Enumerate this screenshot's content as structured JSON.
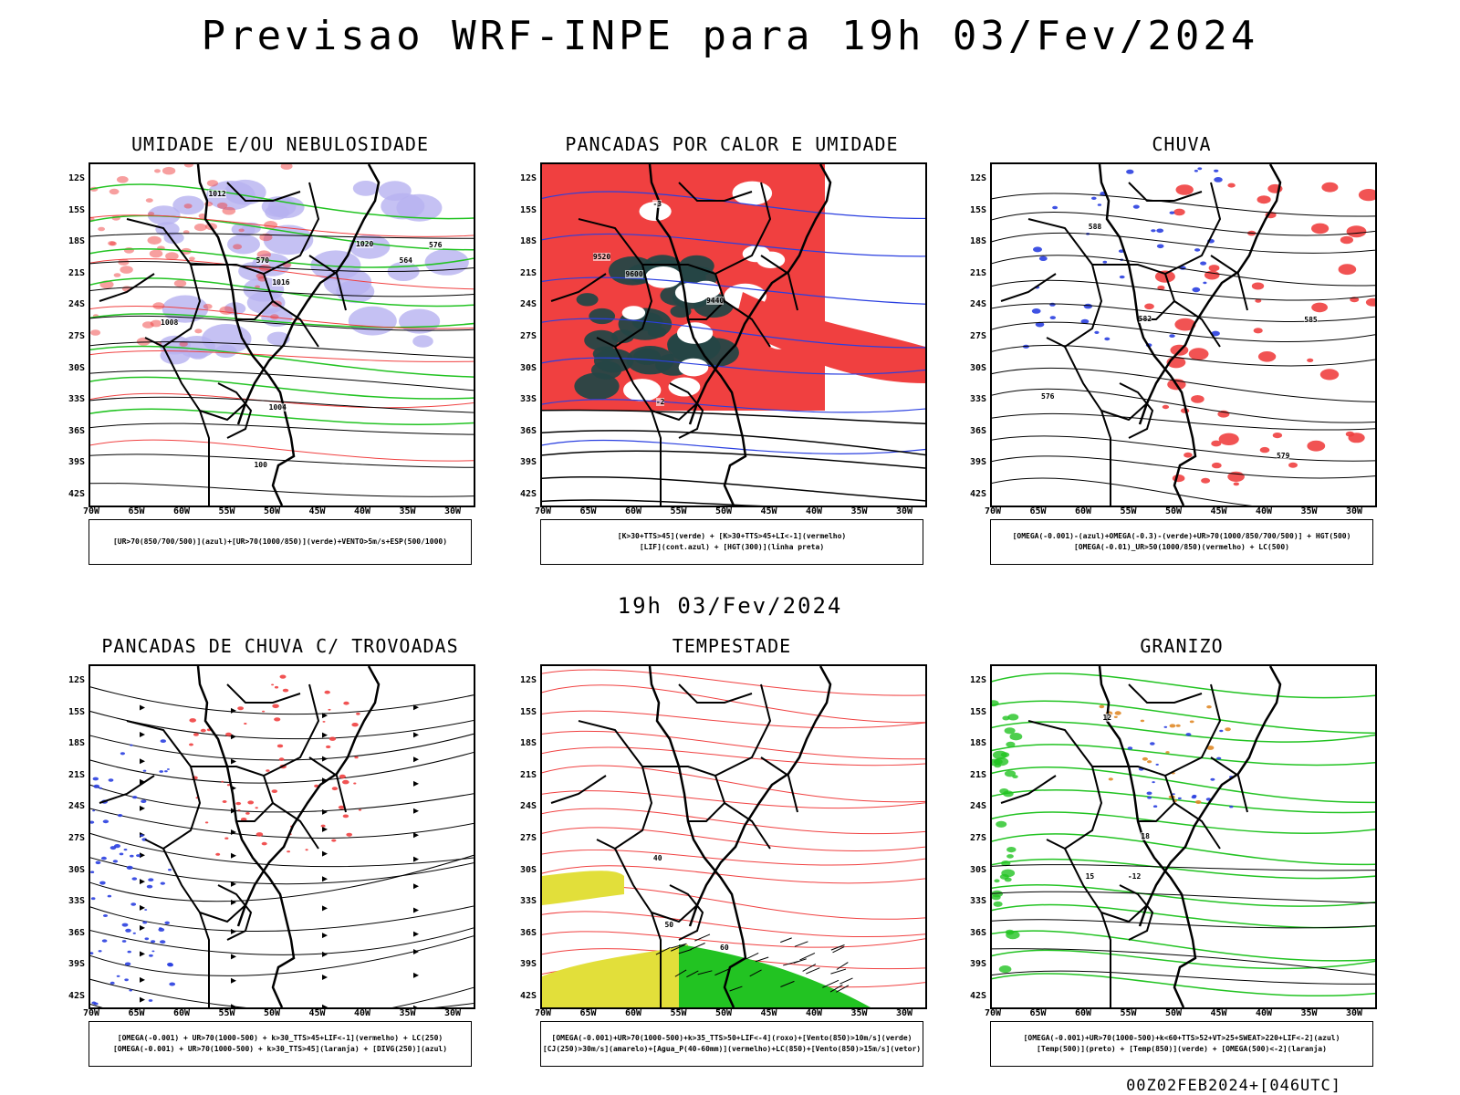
{
  "title": "Previsao WRF-INPE  para 19h 03/Fev/2024",
  "subtitle": "19h 03/Fev/2024",
  "footer": "00Z02FEB2024+[046UTC]",
  "axes": {
    "lat_labels": [
      "12S",
      "15S",
      "18S",
      "21S",
      "24S",
      "27S",
      "30S",
      "33S",
      "36S",
      "39S",
      "42S"
    ],
    "lon_labels": [
      "70W",
      "65W",
      "60W",
      "55W",
      "50W",
      "45W",
      "40W",
      "35W",
      "30W"
    ]
  },
  "panels": [
    {
      "id": "umidade",
      "title": "UMIDADE E/OU NEBULOSIDADE",
      "legend": [
        "[UR>70(850/700/500)](azul)+[UR>70(1000/850)](verde)+VENTO>5m/s+ESP(500/1000)"
      ],
      "contour_labels": [
        "1008",
        "1012",
        "1016",
        "1020",
        "1004",
        "576",
        "570",
        "564",
        "100"
      ]
    },
    {
      "id": "pancadas",
      "title": "PANCADAS POR CALOR E UMIDADE",
      "legend": [
        "[K>30+TTS>45](verde) + [K>30+TTS>45+LI<-1](vermelho)",
        "[LIF](cont.azul) + [HGT(300)](linha preta)"
      ],
      "contour_labels": [
        "9600",
        "9520",
        "9440",
        "-3",
        "-2"
      ]
    },
    {
      "id": "chuva",
      "title": "CHUVA",
      "legend": [
        "[OMEGA(-0.001)-(azul)+OMEGA(-0.3)-(verde)+UR>70(1000/850/700/500)] + HGT(500)",
        "[OMEGA(-0.01)_UR>50(1000/850)(vermelho) + LC(500)"
      ],
      "contour_labels": [
        "588",
        "585",
        "582",
        "579",
        "576"
      ]
    },
    {
      "id": "trovoadas",
      "title": "PANCADAS DE CHUVA C/ TROVOADAS",
      "legend": [
        "[OMEGA(-0.001) + UR>70(1000-500) + k>30_TTS>45+LIF<-1](vermelho) + LC(250)",
        "[OMEGA(-0.001) + UR>70(1000-500) + k>30_TTS>45](laranja) + [DIVG(250)](azul)"
      ],
      "contour_labels": []
    },
    {
      "id": "tempestade",
      "title": "TEMPESTADE",
      "legend": [
        "[OMEGA(-0.001)+UR>70(1000-500)+k>35_TTS>50+LIF<-4](roxo)+[Vento(850)>10m/s](verde)",
        "[CJ(250)>30m/s](amarelo)+[Agua_P(40-60mm)](vermelho)+LC(850)+[Vento(850)>15m/s](vetor)"
      ],
      "contour_labels": [
        "50",
        "60",
        "40"
      ]
    },
    {
      "id": "granizo",
      "title": "GRANIZO",
      "legend": [
        "[OMEGA(-0.001)+UR>70(1000-500)+k<60+TTS>52+VT>25+SWEAT>220+LIF<-2](azul)",
        "[Temp(500)](preto) + [Temp(850)](verde) + [OMEGA(500)<-2](laranja)"
      ],
      "contour_labels": [
        "-12",
        "12",
        "15",
        "18"
      ]
    }
  ],
  "colors": {
    "blue": "#2a3fe0",
    "green": "#22c322",
    "red": "#f04040",
    "lavender": "#b7b2f0",
    "darkteal": "#254646",
    "yellow": "#e2df3a",
    "purple": "#b000d0",
    "orange": "#e08a28"
  }
}
